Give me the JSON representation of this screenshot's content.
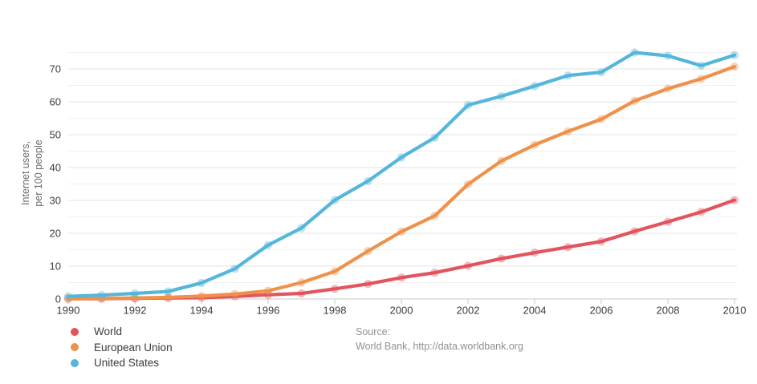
{
  "chart_data": {
    "type": "line",
    "title": "",
    "xlabel": "",
    "ylabel": "Internet users, per 100 people",
    "ylabel_line1": "Internet users,",
    "ylabel_line2": "per 100 people",
    "x": [
      1990,
      1991,
      1992,
      1993,
      1994,
      1995,
      1996,
      1997,
      1998,
      1999,
      2000,
      2001,
      2002,
      2003,
      2004,
      2005,
      2006,
      2007,
      2008,
      2009,
      2010
    ],
    "x_tick_labels": [
      "1990",
      "1992",
      "1994",
      "1996",
      "1998",
      "2000",
      "2002",
      "2004",
      "2006",
      "2008",
      "2010"
    ],
    "y_major_ticks": [
      0,
      10,
      20,
      30,
      40,
      50,
      60,
      70
    ],
    "y_minor_ticks": [
      5,
      15,
      25,
      35,
      45,
      55,
      65,
      75
    ],
    "ylim": [
      0,
      75
    ],
    "grid": "horizontal",
    "legend_position": "bottom-left",
    "series": [
      {
        "name": "World",
        "color": "#e2545e",
        "values": [
          0.1,
          0.1,
          0.2,
          0.3,
          0.4,
          0.8,
          1.3,
          1.7,
          3.1,
          4.6,
          6.5,
          8.0,
          10.1,
          12.3,
          14.1,
          15.8,
          17.5,
          20.6,
          23.5,
          26.5,
          30.1
        ]
      },
      {
        "name": "European Union",
        "color": "#f0914a",
        "values": [
          0.1,
          0.2,
          0.3,
          0.5,
          0.9,
          1.5,
          2.5,
          5.0,
          8.4,
          14.6,
          20.5,
          25.3,
          34.9,
          42.0,
          46.9,
          51.0,
          54.7,
          60.3,
          64.0,
          67.0,
          70.7
        ]
      },
      {
        "name": "United States",
        "color": "#55b6db",
        "values": [
          0.8,
          1.2,
          1.7,
          2.3,
          4.9,
          9.2,
          16.4,
          21.6,
          30.1,
          35.9,
          43.1,
          49.1,
          59.0,
          61.7,
          64.8,
          68.0,
          69.0,
          75.0,
          74.0,
          71.0,
          74.2
        ]
      }
    ]
  },
  "source": {
    "line1": "Source:",
    "line2": "World Bank, http://data.worldbank.org"
  }
}
